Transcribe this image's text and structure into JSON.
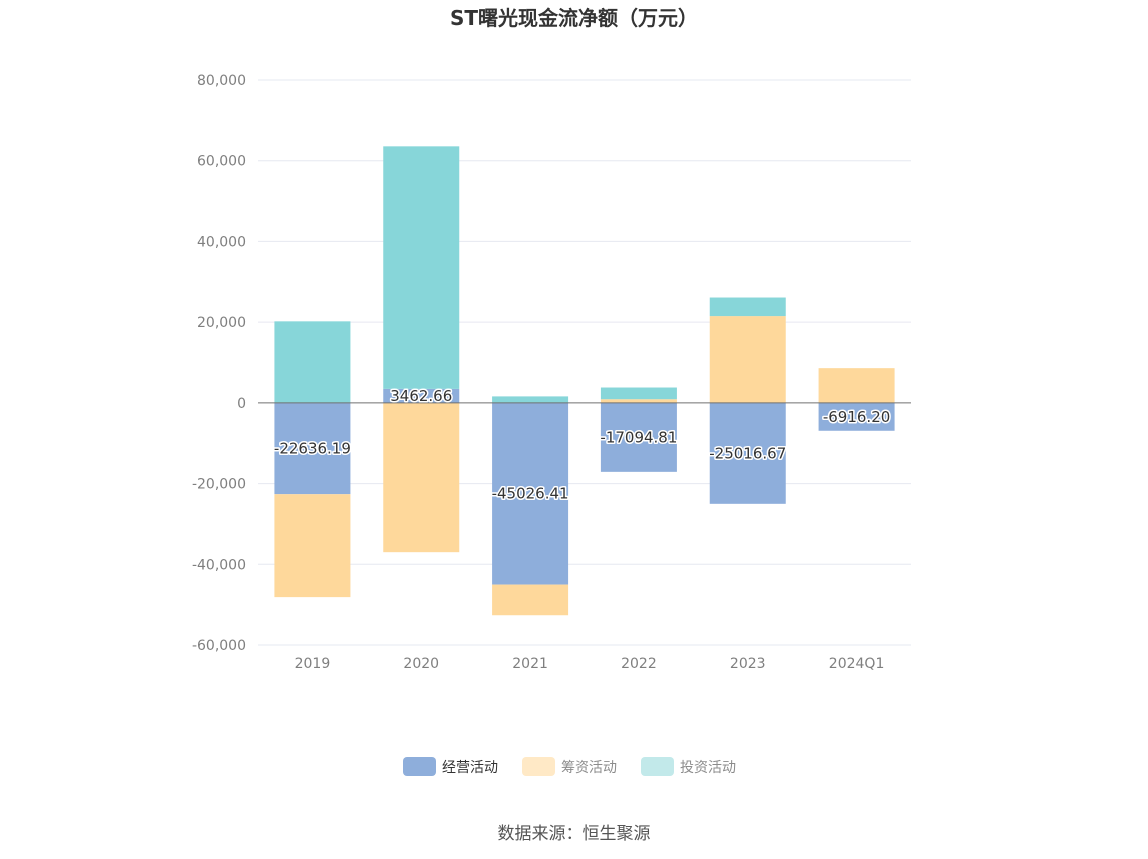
{
  "chart_data": {
    "type": "bar",
    "stacked": true,
    "title": "ST曙光现金流净额（万元）",
    "categories": [
      "2019",
      "2020",
      "2021",
      "2022",
      "2023",
      "2024Q1"
    ],
    "series": [
      {
        "name": "经营活动",
        "color": "#8eaedb",
        "values": [
          -22636.19,
          3462.66,
          -45026.41,
          -17094.81,
          -25016.67,
          -6916.2
        ],
        "labels": [
          "-22636.19",
          "3462.66",
          "-45026.41",
          "-17094.81",
          "-25016.67",
          "-6916.20"
        ]
      },
      {
        "name": "筹资活动",
        "color": "#fed89b",
        "values": [
          -25500,
          -37000,
          -7600,
          900,
          21500,
          8600
        ]
      },
      {
        "name": "投资活动",
        "color": "#87d6d9",
        "values": [
          20200,
          60100,
          1600,
          2900,
          4600,
          0
        ]
      }
    ],
    "yticks": [
      80000,
      60000,
      40000,
      20000,
      0,
      -20000,
      -40000,
      -60000
    ],
    "ytick_labels": [
      "80,000",
      "60,000",
      "40,000",
      "20,000",
      "0",
      "-20,000",
      "-40,000",
      "-60,000"
    ],
    "ylim": [
      -60000,
      80000
    ],
    "grid": true,
    "legend_position": "bottom-center",
    "legend_colors": [
      "#8eaedb",
      "#ffe9c6",
      "#c2e9ea"
    ],
    "source": "数据来源：恒生聚源"
  }
}
